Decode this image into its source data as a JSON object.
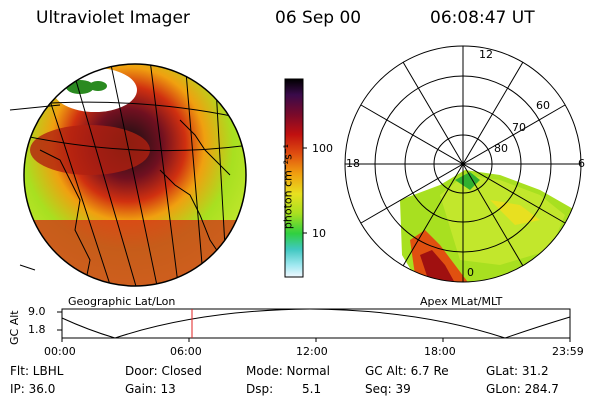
{
  "header": {
    "instrument": "Ultraviolet Imager",
    "date": "06 Sep 00",
    "time": "06:08:47 UT"
  },
  "colorbar": {
    "label": "photon cm⁻²s⁻¹",
    "ticks": [
      "100",
      "10"
    ]
  },
  "polar_plot": {
    "mlt_labels": [
      "12",
      "18",
      "6",
      "0"
    ],
    "mlat_labels": [
      "60",
      "70",
      "80"
    ]
  },
  "map_labels": {
    "left": "Geographic Lat/Lon",
    "right": "Apex MLat/MLT"
  },
  "altitude_plot": {
    "ylabel": "GC Alt",
    "yticks": [
      "9.0",
      "1.8"
    ],
    "xticks": [
      "00:00",
      "06:00",
      "12:00",
      "18:00",
      "23:59"
    ],
    "marker_time": "06:08:47"
  },
  "status": {
    "filter": "Flt: LBHL",
    "door": "Door: Closed",
    "mode": "Mode: Normal",
    "gc_alt": "GC Alt: 6.7 Re",
    "glat": "GLat: 31.2",
    "ip": "IP: 36.0",
    "gain": "Gain: 13",
    "dsp_label": "Dsp:",
    "dsp_value": "5.1",
    "seq": "Seq: 39",
    "glon": "GLon: 284.7"
  },
  "colors": {
    "colorbar_gradient": [
      "#000000",
      "#3a0a4a",
      "#7a0a2a",
      "#c01010",
      "#e05010",
      "#f0a010",
      "#e8e020",
      "#a8e020",
      "#30d040",
      "#40c8c0",
      "#a0e8f0",
      "#f0f8ff"
    ],
    "marker_line": "#e02020"
  }
}
